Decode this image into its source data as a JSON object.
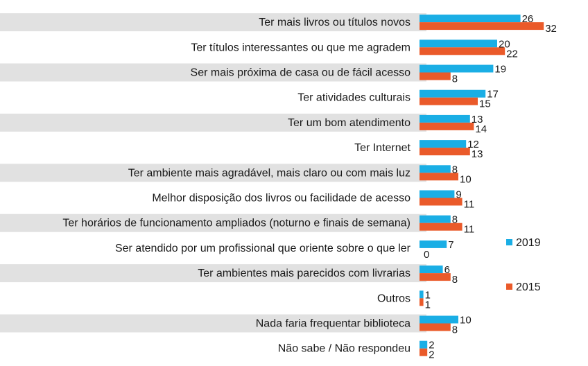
{
  "chart_data": {
    "type": "bar",
    "orientation": "horizontal",
    "categories": [
      "Ter mais livros ou títulos novos",
      "Ter títulos interessantes ou que me agradem",
      "Ser mais próxima de casa ou de fácil acesso",
      "Ter atividades culturais",
      "Ter um bom atendimento",
      "Ter Internet",
      "Ter ambiente mais agradável, mais claro ou com mais luz",
      "Melhor disposição dos livros ou facilidade de acesso",
      "Ter horários de funcionamento ampliados (noturno e finais de semana)",
      "Ser atendido por um profissional que oriente sobre o que ler",
      "Ter ambientes mais parecidos com livrarias",
      "Outros",
      "Nada faria frequentar biblioteca",
      "Não sabe / Não respondeu"
    ],
    "series": [
      {
        "name": "2019",
        "color": "#1aaee5",
        "values": [
          26,
          20,
          19,
          17,
          13,
          12,
          8,
          9,
          8,
          7,
          6,
          1,
          10,
          2
        ]
      },
      {
        "name": "2015",
        "color": "#ea5a2a",
        "values": [
          32,
          22,
          8,
          15,
          14,
          13,
          10,
          11,
          11,
          0,
          8,
          1,
          8,
          2
        ]
      }
    ],
    "xlim": [
      0,
      40
    ],
    "legend_position": "right",
    "title": "",
    "xlabel": "",
    "ylabel": ""
  }
}
